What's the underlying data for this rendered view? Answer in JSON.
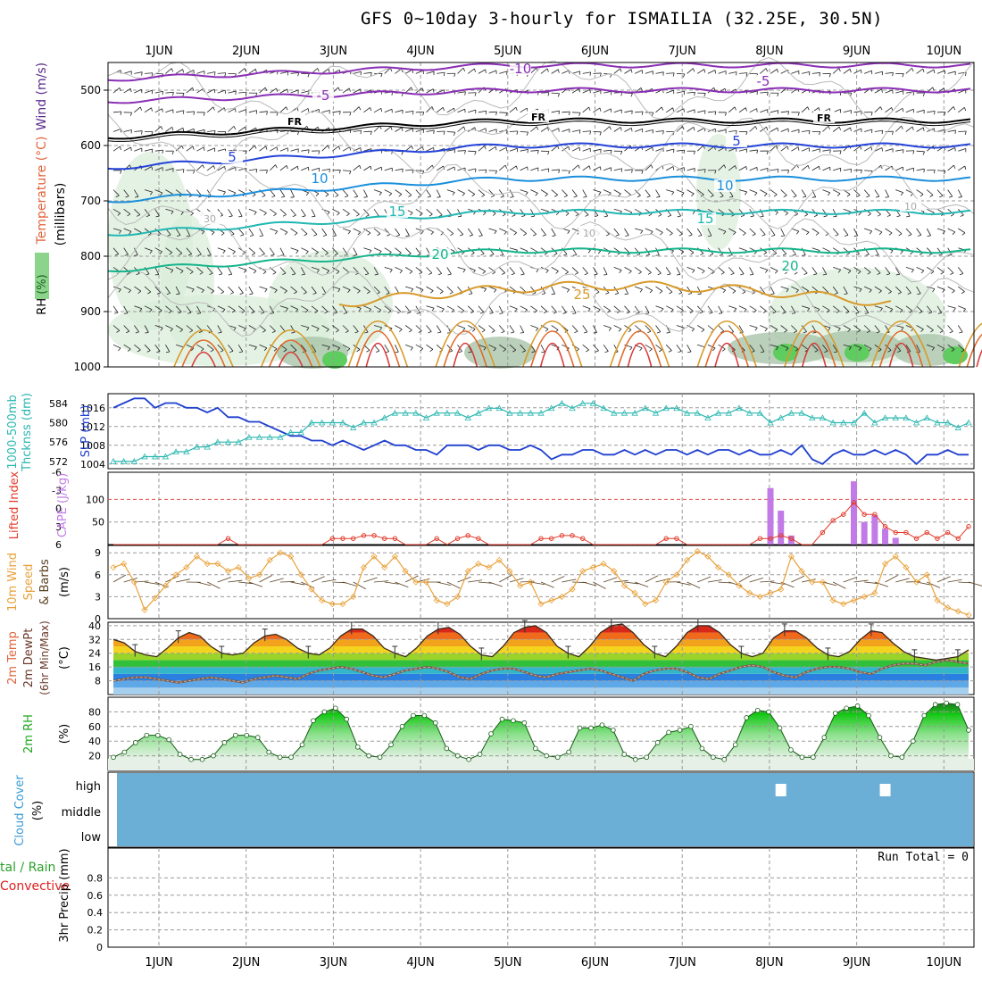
{
  "title": "GFS 0~10day 3-hourly for ISMAILIA (32.25E, 30.5N)",
  "colors": {
    "temperature_label": "#e0643c",
    "wind_label": "#5a2b88",
    "rh_label": "#2eae2e",
    "slp": "#1f3fcf",
    "thickness": "#2bb7b0",
    "cape": "#c27be6",
    "lifted_index": "#e23a2a",
    "wind_speed": "#e8a13a",
    "rh2m": "#1fa81f",
    "cloud_bg": "#6baed6",
    "precip_total": "#2aa02a",
    "precip_convective": "#e02020"
  },
  "chart_data": [
    {
      "id": "upper_air",
      "type": "heatmap",
      "x_ticks": [
        "1JUN",
        "2JUN",
        "3JUN",
        "4JUN",
        "5JUN",
        "6JUN",
        "7JUN",
        "8JUN",
        "9JUN",
        "10JUN"
      ],
      "ylabel_parts": [
        "RH (%)",
        "Temperature (°C)",
        "Wind (m/s)"
      ],
      "ylabel_units": "(millibars)",
      "y_ticks": [
        "500",
        "600",
        "700",
        "800",
        "900",
        "1000"
      ],
      "ylim": [
        450,
        1000
      ],
      "contour_labels": [
        "-10",
        "-5",
        "-5",
        "FR",
        "FR",
        "FR",
        "5",
        "5",
        "10",
        "10",
        "15",
        "15",
        "20",
        "20",
        "25",
        "30",
        "10",
        "10"
      ]
    },
    {
      "id": "slp_thickness",
      "type": "line",
      "ylabel_left": "1000-500mb Thcknss (dm)",
      "ylabel_right": "SLP (mb)",
      "y_ticks_left": [
        "584",
        "580",
        "576",
        "572"
      ],
      "y_ticks_right": [
        "1016",
        "1012",
        "1008",
        "1004"
      ],
      "ylim_slp": [
        1003,
        1019
      ],
      "series": [
        {
          "values": [
            1016,
            1017,
            1018,
            1018,
            1016,
            1017,
            1017,
            1016,
            1016,
            1015,
            1016,
            1014,
            1014,
            1013,
            1013,
            1012,
            1011,
            1010,
            1010,
            1009,
            1009,
            1008,
            1009,
            1008,
            1007,
            1008,
            1009,
            1008,
            1008,
            1007,
            1007,
            1006,
            1008,
            1008,
            1008,
            1007,
            1008,
            1008,
            1007,
            1007,
            1008,
            1007,
            1005,
            1006,
            1006,
            1007,
            1007,
            1006,
            1006,
            1007,
            1006,
            1007,
            1006,
            1007,
            1007,
            1006,
            1007,
            1006,
            1007,
            1007,
            1006,
            1007,
            1006,
            1006,
            1007,
            1006,
            1008,
            1005,
            1004,
            1006,
            1007,
            1006,
            1006,
            1007,
            1006,
            1007,
            1006,
            1004,
            1006,
            1006,
            1007,
            1006,
            1006
          ]
        },
        {
          "values": [
            572,
            572,
            572,
            573,
            573,
            573,
            574,
            574,
            575,
            575,
            576,
            576,
            576,
            577,
            577,
            577,
            577,
            578,
            578,
            580,
            580,
            580,
            580,
            579,
            580,
            580,
            581,
            582,
            582,
            582,
            581,
            582,
            582,
            582,
            581,
            582,
            583,
            583,
            582,
            582,
            582,
            582,
            583,
            584,
            583,
            584,
            584,
            583,
            582,
            582,
            582,
            583,
            582,
            583,
            583,
            582,
            582,
            581,
            582,
            582,
            583,
            582,
            582,
            580,
            581,
            582,
            582,
            581,
            581,
            580,
            580,
            580,
            582,
            580,
            581,
            581,
            581,
            580,
            581,
            580,
            580,
            579,
            580
          ]
        }
      ]
    },
    {
      "id": "cape_li",
      "type": "bar",
      "ylabel_left": "Lifted Index",
      "ylabel_right": "CAPE (J/kg)",
      "y_ticks_left": [
        "-6",
        "-3",
        "0",
        "3",
        "6"
      ],
      "y_ticks_right": [
        "100",
        "50"
      ],
      "ylim_cape": [
        0,
        160
      ],
      "ylim_li": [
        6,
        -6
      ],
      "cape_bars": [
        {
          "step": 63,
          "value": 125
        },
        {
          "step": 64,
          "value": 75
        },
        {
          "step": 65,
          "value": 20
        },
        {
          "step": 71,
          "value": 140
        },
        {
          "step": 72,
          "value": 50
        },
        {
          "step": 73,
          "value": 65
        },
        {
          "step": 74,
          "value": 35
        },
        {
          "step": 75,
          "value": 15
        }
      ],
      "series": [
        {
          "name": "Lifted Index",
          "values": [
            6,
            6,
            6,
            6,
            6,
            6,
            6,
            6,
            6,
            6,
            6,
            5,
            6,
            6,
            6,
            6,
            6,
            6,
            6,
            6,
            6,
            5,
            5,
            5,
            4.5,
            4.5,
            5,
            5,
            6,
            6,
            6,
            5,
            6,
            5,
            4.5,
            5,
            6,
            6,
            6,
            6,
            6,
            5,
            5,
            4.5,
            4.5,
            5,
            6,
            6,
            6,
            6,
            6,
            6,
            6,
            5,
            5,
            6,
            6,
            6,
            6,
            6,
            6,
            6,
            5,
            5,
            4.5,
            5,
            6,
            6,
            4,
            2,
            1,
            -1,
            1,
            1,
            3,
            4,
            4,
            5,
            4,
            5,
            4,
            5,
            3
          ]
        }
      ]
    },
    {
      "id": "wind10m",
      "type": "line",
      "ylabel": "10m Wind Speed & Barbs (m/s)",
      "y_ticks": [
        "9",
        "6",
        "3",
        "0"
      ],
      "ylim": [
        0,
        10
      ],
      "series": [
        {
          "values": [
            7,
            7.5,
            5,
            1.2,
            2.8,
            4.5,
            6,
            7,
            8.5,
            7.5,
            7.5,
            6.5,
            7,
            5.5,
            6,
            8,
            9,
            8.5,
            6,
            4,
            2.5,
            2,
            2,
            3,
            7,
            8.5,
            7,
            8.5,
            6.5,
            5,
            5,
            2.5,
            2,
            3,
            6.5,
            7.5,
            7,
            8,
            6.5,
            4.5,
            5,
            2,
            2.5,
            3,
            4,
            6.5,
            7,
            7.5,
            6.5,
            4.5,
            3.5,
            2,
            2.5,
            5,
            6,
            8,
            9.2,
            8.5,
            7,
            6,
            4.5,
            3.5,
            3,
            3.5,
            4,
            8.5,
            6.5,
            5,
            5,
            2.5,
            2,
            2.5,
            3,
            3.5,
            7.5,
            8.5,
            7,
            5,
            6,
            2.5,
            1.5,
            1,
            0.5
          ]
        }
      ]
    },
    {
      "id": "temp2m",
      "type": "area",
      "ylabel": "2m Temp 2m DewPt (6hr Min/Max) (°C)",
      "y_ticks": [
        "40",
        "32",
        "24",
        "16",
        "8"
      ],
      "ylim": [
        0,
        42
      ],
      "series": [
        {
          "name": "temp",
          "values": [
            32,
            30,
            25,
            23,
            22,
            27,
            33,
            36,
            34,
            28,
            24,
            23,
            24,
            30,
            34,
            35,
            32,
            27,
            24,
            23,
            27,
            34,
            38,
            38,
            34,
            27,
            24,
            22,
            27,
            34,
            38,
            39,
            35,
            28,
            23,
            22,
            28,
            36,
            39,
            40,
            36,
            28,
            24,
            22,
            28,
            36,
            40,
            41,
            36,
            29,
            24,
            22,
            28,
            36,
            40,
            40,
            36,
            29,
            24,
            22,
            24,
            33,
            37,
            37,
            33,
            27,
            23,
            22,
            25,
            32,
            37,
            36,
            30,
            25,
            22,
            21,
            20,
            21,
            22,
            26
          ]
        },
        {
          "name": "dewpoint",
          "values": [
            8,
            9,
            10,
            10,
            9,
            8,
            7,
            8,
            9,
            10,
            9,
            8,
            7,
            9,
            10,
            11,
            10,
            9,
            12,
            14,
            15,
            16,
            15,
            13,
            11,
            10,
            12,
            14,
            15,
            16,
            15,
            13,
            10,
            9,
            12,
            14,
            15,
            15,
            13,
            11,
            10,
            12,
            13,
            14,
            15,
            14,
            12,
            10,
            8,
            12,
            14,
            15,
            15,
            13,
            10,
            9,
            12,
            14,
            16,
            17,
            16,
            13,
            11,
            10,
            13,
            15,
            16,
            16,
            15,
            13,
            12,
            15,
            17,
            18,
            18,
            17,
            19,
            20,
            19,
            18
          ]
        }
      ]
    },
    {
      "id": "rh2m",
      "type": "area",
      "ylabel": "2m RH (%)",
      "y_ticks": [
        "80",
        "60",
        "40",
        "20"
      ],
      "ylim": [
        0,
        100
      ],
      "series": [
        {
          "values": [
            18,
            25,
            38,
            48,
            48,
            42,
            22,
            15,
            15,
            20,
            38,
            48,
            48,
            45,
            25,
            18,
            18,
            35,
            68,
            80,
            85,
            70,
            32,
            20,
            18,
            35,
            60,
            75,
            75,
            65,
            30,
            20,
            15,
            22,
            50,
            70,
            68,
            65,
            30,
            20,
            18,
            25,
            58,
            58,
            62,
            55,
            22,
            15,
            18,
            38,
            52,
            55,
            60,
            30,
            18,
            15,
            35,
            72,
            82,
            80,
            58,
            28,
            18,
            18,
            45,
            78,
            85,
            88,
            75,
            45,
            20,
            18,
            40,
            75,
            90,
            92,
            90,
            55
          ]
        }
      ]
    },
    {
      "id": "cloud",
      "type": "heatmap",
      "ylabel": "Cloud Cover (%)",
      "y_ticks": [
        "high",
        "middle",
        "low"
      ],
      "blocks": [
        {
          "step": 64,
          "level": "high",
          "value": 100
        },
        {
          "step": 74,
          "level": "high",
          "value": 100
        }
      ]
    },
    {
      "id": "precip",
      "type": "bar",
      "ylabel": "3hr Precip (mm)",
      "legend_total": "tal / Rain",
      "legend_convective": "Convective",
      "run_total": "Run Total = 0",
      "y_ticks": [
        "0.8",
        "0.6",
        "0.4",
        "0.2",
        "0"
      ],
      "ylim": [
        0,
        1
      ]
    }
  ]
}
